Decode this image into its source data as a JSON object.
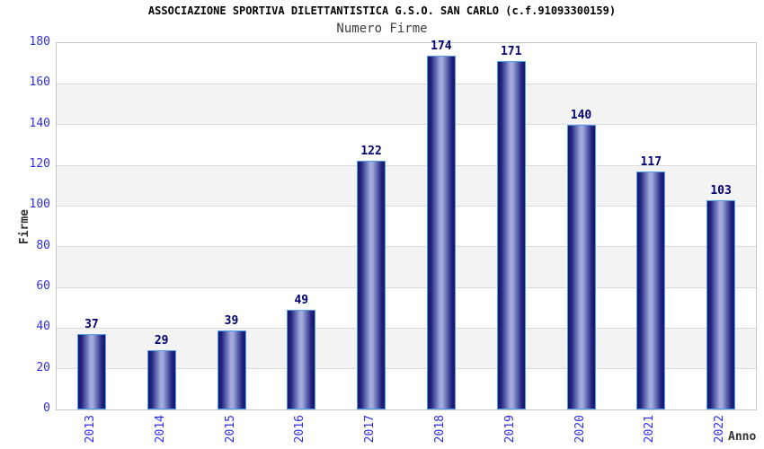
{
  "chart_data": {
    "type": "bar",
    "title": "ASSOCIAZIONE SPORTIVA DILETTANTISTICA G.S.O. SAN CARLO (c.f.91093300159)",
    "subtitle": "Numero Firme",
    "xlabel": "Anno",
    "ylabel": "Firme",
    "categories": [
      "2013",
      "2014",
      "2015",
      "2016",
      "2017",
      "2018",
      "2019",
      "2020",
      "2021",
      "2022"
    ],
    "values": [
      37,
      29,
      39,
      49,
      122,
      174,
      171,
      140,
      117,
      103
    ],
    "ylim": [
      0,
      180
    ],
    "y_ticks": [
      0,
      20,
      40,
      60,
      80,
      100,
      120,
      140,
      160,
      180
    ],
    "grid": "horizontal",
    "background_bands": "alternating gray/white every 20 units",
    "legend": "none",
    "colors": {
      "bar_dark": "#16166e",
      "bar_mid": "#23237f",
      "bar_mid2": "#6a74b8",
      "bar_light": "#a3abdc",
      "bar_border": "#4f9fea",
      "tick_label": "#2e2ee6",
      "value_label": "#000073",
      "band_gray": "#f3f3f3",
      "gridline": "#d9d9d9",
      "plot_border": "#c9c9c9",
      "title_color": "#000000",
      "subtitle_color": "#3d3d3d",
      "axis_title_color": "#333333"
    }
  }
}
